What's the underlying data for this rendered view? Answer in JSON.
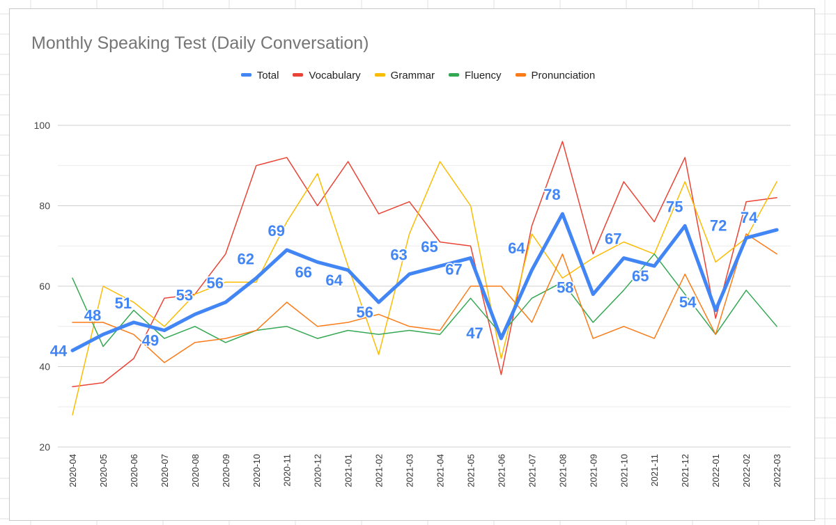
{
  "chart_data": {
    "type": "line",
    "title": "Monthly Speaking Test (Daily Conversation)",
    "xlabel": "",
    "ylabel": "",
    "ylim": [
      20,
      100
    ],
    "y_ticks": [
      20,
      40,
      60,
      80,
      100
    ],
    "grid": true,
    "legend_position": "top-center",
    "categories": [
      "2020-04",
      "2020-05",
      "2020-06",
      "2020-07",
      "2020-08",
      "2020-09",
      "2020-10",
      "2020-11",
      "2020-12",
      "2021-01",
      "2021-02",
      "2021-03",
      "2021-04",
      "2021-05",
      "2021-06",
      "2021-07",
      "2021-08",
      "2021-09",
      "2021-10",
      "2021-11",
      "2021-12",
      "2022-01",
      "2022-02",
      "2022-03"
    ],
    "series": [
      {
        "name": "Total",
        "color": "#4285f4",
        "values": [
          44,
          48,
          51,
          49,
          53,
          56,
          62,
          69,
          66,
          64,
          56,
          63,
          65,
          67,
          47,
          64,
          78,
          58,
          67,
          65,
          75,
          54,
          72,
          74
        ],
        "data_labels": true
      },
      {
        "name": "Vocabulary",
        "color": "#ea4335",
        "values": [
          35,
          36,
          42,
          57,
          58,
          68,
          90,
          92,
          80,
          91,
          78,
          81,
          71,
          70,
          38,
          75,
          96,
          68,
          86,
          76,
          92,
          52,
          81,
          82
        ]
      },
      {
        "name": "Grammar",
        "color": "#fbbc04",
        "values": [
          28,
          60,
          56,
          50,
          58,
          61,
          61,
          76,
          88,
          65,
          43,
          73,
          91,
          80,
          42,
          73,
          62,
          67,
          71,
          68,
          86,
          66,
          72,
          86
        ]
      },
      {
        "name": "Fluency",
        "color": "#34a853",
        "values": [
          62,
          45,
          54,
          47,
          50,
          46,
          49,
          50,
          47,
          49,
          48,
          49,
          48,
          57,
          48,
          57,
          61,
          51,
          59,
          68,
          58,
          48,
          59,
          50
        ]
      },
      {
        "name": "Pronunciation",
        "color": "#fa7b17",
        "values": [
          51,
          51,
          48,
          41,
          46,
          47,
          49,
          56,
          50,
          51,
          53,
          50,
          49,
          60,
          60,
          51,
          68,
          47,
          50,
          47,
          63,
          48,
          73,
          68
        ]
      }
    ]
  }
}
